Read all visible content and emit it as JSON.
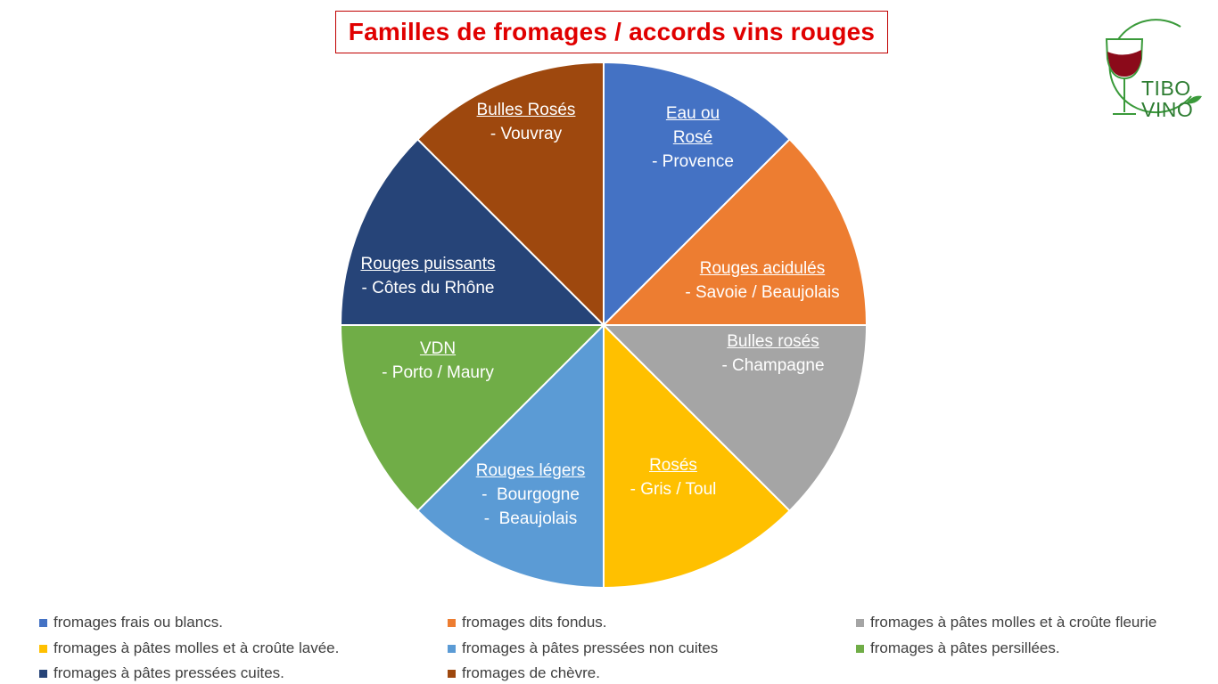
{
  "title": "Familles de fromages / accords vins rouges",
  "logo": {
    "line1": "TIBO",
    "line2": "VINO",
    "icon": "wine-glass-icon"
  },
  "chart_data": {
    "type": "pie",
    "values": [
      1,
      1,
      1,
      1,
      1,
      1,
      1,
      1
    ],
    "slices": [
      {
        "legend": "fromages frais ou blancs.",
        "color": "#4472c4",
        "label_title": "Eau ou\nRosé",
        "label_lines": [
          "- Provence"
        ]
      },
      {
        "legend": "fromages dits fondus.",
        "color": "#ed7d31",
        "label_title": "Rouges acidulés",
        "label_lines": [
          "- Savoie / Beaujolais"
        ]
      },
      {
        "legend": "fromages à pâtes molles et à croûte fleurie",
        "color": "#a5a5a5",
        "label_title": "Bulles rosés",
        "label_lines": [
          "- Champagne"
        ]
      },
      {
        "legend": "fromages à pâtes molles et à croûte lavée.",
        "color": "#ffc000",
        "label_title": "Rosés",
        "label_lines": [
          "- Gris / Toul"
        ]
      },
      {
        "legend": "fromages à pâtes pressées non cuites",
        "color": "#5b9bd5",
        "label_title": "Rouges légers",
        "label_lines": [
          "-  Bourgogne",
          "-  Beaujolais"
        ]
      },
      {
        "legend": "fromages à pâtes persillées.",
        "color": "#70ad47",
        "label_title": "VDN",
        "label_lines": [
          "- Porto / Maury"
        ]
      },
      {
        "legend": "fromages à pâtes pressées cuites.",
        "color": "#264478",
        "label_title": "Rouges puissants",
        "label_lines": [
          "- Côtes du Rhône"
        ]
      },
      {
        "legend": "fromages de chèvre.",
        "color": "#9e480e",
        "label_title": "Bulles Rosés",
        "label_lines": [
          "- Vouvray"
        ]
      }
    ],
    "legend_position": "bottom"
  }
}
